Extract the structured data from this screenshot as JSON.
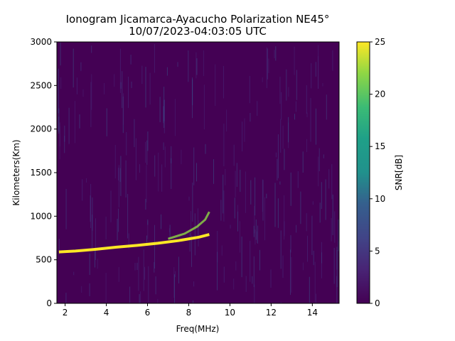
{
  "chart_data": {
    "type": "heatmap",
    "title": "Ionogram Jicamarca-Ayacucho Polarization NE45°",
    "subtitle": "10/07/2023-04:03:05 UTC",
    "xlabel": "Freq(MHz)",
    "ylabel": "Kilometers(Km)",
    "xlim": [
      1.6,
      15.3
    ],
    "ylim": [
      0,
      3000
    ],
    "x_ticks": [
      2,
      4,
      6,
      8,
      10,
      12,
      14
    ],
    "y_ticks": [
      0,
      500,
      1000,
      1500,
      2000,
      2500,
      3000
    ],
    "colorbar": {
      "label": "SNR[dB]",
      "range": [
        0,
        25
      ],
      "ticks": [
        0,
        5,
        10,
        15,
        20,
        25
      ],
      "colormap": "viridis"
    },
    "echo_traces": [
      {
        "name_hint": "F-layer trace",
        "points": [
          [
            1.7,
            590
          ],
          [
            2.5,
            600
          ],
          [
            3.5,
            620
          ],
          [
            4.5,
            645
          ],
          [
            5.5,
            665
          ],
          [
            6.5,
            690
          ],
          [
            7.5,
            720
          ],
          [
            8.5,
            760
          ],
          [
            9.0,
            790
          ]
        ]
      },
      {
        "name_hint": "F-layer spread",
        "points": [
          [
            7.0,
            740
          ],
          [
            7.8,
            800
          ],
          [
            8.4,
            880
          ],
          [
            8.8,
            960
          ],
          [
            9.0,
            1050
          ]
        ]
      }
    ],
    "colors": {
      "low": "#440154",
      "high": "#fde725"
    }
  }
}
